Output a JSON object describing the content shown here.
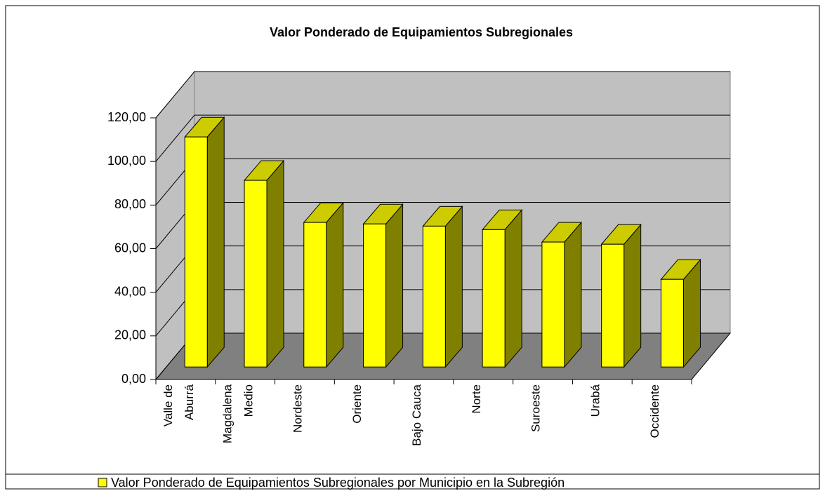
{
  "chart_data": {
    "type": "bar3d",
    "title": "Valor Ponderado de Equipamientos Subregionales",
    "categories": [
      [
        "Valle de",
        "Aburrá"
      ],
      [
        "Magdalena",
        "Medio"
      ],
      [
        "Nordeste"
      ],
      [
        "Oriente"
      ],
      [
        "Bajo Cauca"
      ],
      [
        "Norte"
      ],
      [
        "Suroeste"
      ],
      [
        "Urabá"
      ],
      [
        "Occidente"
      ]
    ],
    "series": [
      {
        "name": "Valor Ponderado de Equipamientos Subregionales por Municipio en la Subregión",
        "color": "#ffff00",
        "values": [
          105.5,
          85.6,
          66.3,
          65.6,
          64.6,
          63.0,
          57.3,
          56.3,
          40.2
        ]
      }
    ],
    "ylim": [
      0,
      120
    ],
    "yticks": [
      {
        "value": 0,
        "label": "0,00"
      },
      {
        "value": 20,
        "label": "20,00"
      },
      {
        "value": 40,
        "label": "40,00"
      },
      {
        "value": 60,
        "label": "60,00"
      },
      {
        "value": 80,
        "label": "80,00"
      },
      {
        "value": 100,
        "label": "100,00"
      },
      {
        "value": 120,
        "label": "120,00"
      }
    ],
    "grid": true,
    "legend": "bottom"
  }
}
